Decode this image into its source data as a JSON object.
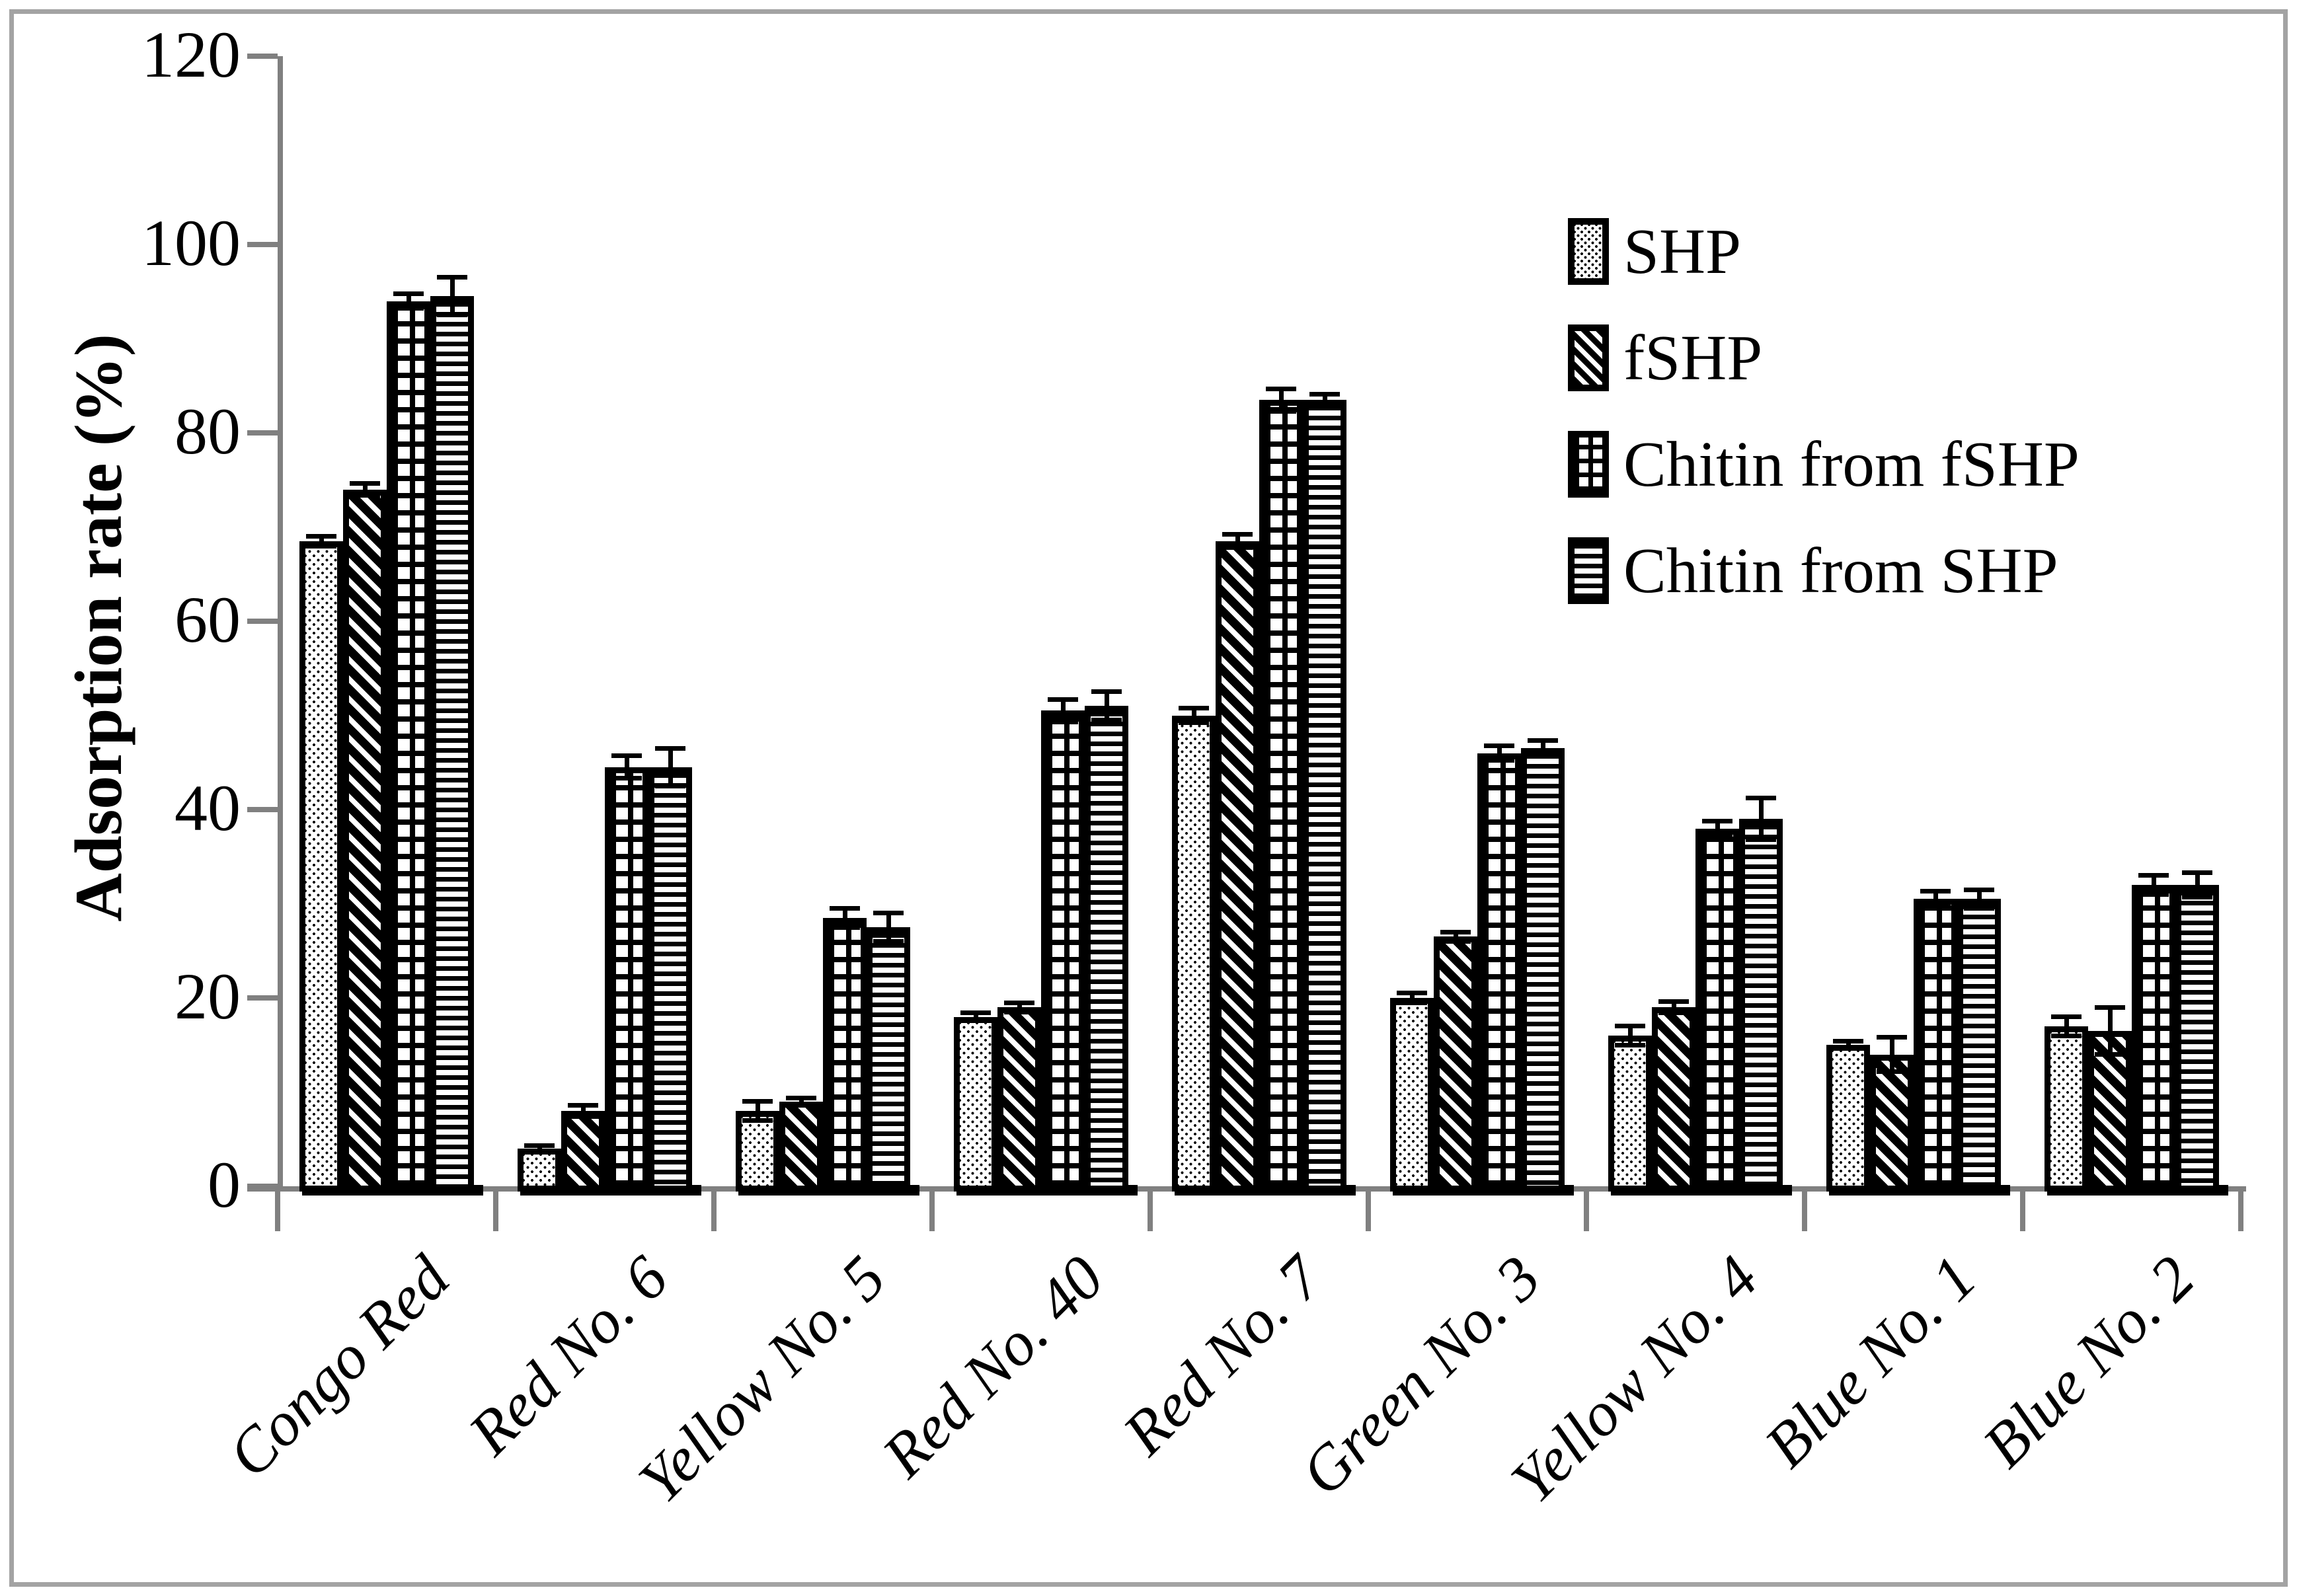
{
  "figure": {
    "background": "#ffffff",
    "frame_color": "#a3a3a3",
    "axis_color": "#808080",
    "bar_stroke": "#000000",
    "text_color": "#000000"
  },
  "chart_data": {
    "type": "bar",
    "title": "",
    "xlabel": "",
    "ylabel": "Adsorption rate (%)",
    "ylim": [
      0,
      120
    ],
    "yticks": [
      0,
      20,
      40,
      60,
      80,
      100,
      120
    ],
    "grid": false,
    "error_bars": true,
    "legend_position": "upper-right-inside",
    "categories": [
      "Congo Red",
      "Red No. 6",
      "Yellow No. 5",
      "Red No. 40",
      "Red No. 7",
      "Green No. 3",
      "Yellow No. 4",
      "Blue No. 1",
      "Blue No. 2"
    ],
    "series": [
      {
        "name": "SHP",
        "pattern": "dots",
        "values": [
          68.5,
          4,
          8,
          18,
          50,
          20,
          16,
          15,
          17
        ],
        "errors": [
          0.5,
          0.3,
          1.0,
          0.4,
          0.8,
          0.5,
          1.0,
          0.4,
          1.0
        ]
      },
      {
        "name": "fSHP",
        "pattern": "diagonal-stripes",
        "values": [
          74,
          8,
          9,
          19,
          68.5,
          26.5,
          19,
          14,
          16.5
        ],
        "errors": [
          0.6,
          0.6,
          0.4,
          0.5,
          0.7,
          0.5,
          0.6,
          1.8,
          2.5
        ]
      },
      {
        "name": "Chitin from fSHP",
        "pattern": "grid",
        "values": [
          94,
          44.5,
          28.5,
          50.5,
          83.5,
          46,
          38,
          30.5,
          32
        ],
        "errors": [
          0.8,
          1.2,
          1.0,
          1.2,
          1.2,
          0.8,
          0.8,
          0.8,
          1.0
        ]
      },
      {
        "name": "Chitin from SHP",
        "pattern": "horizontal-stripes",
        "values": [
          94.5,
          44.5,
          27.5,
          51,
          83.5,
          46.5,
          39,
          30.5,
          32
        ],
        "errors": [
          2.0,
          2.0,
          1.5,
          1.5,
          0.6,
          0.8,
          2.2,
          1.0,
          1.3
        ]
      }
    ]
  }
}
